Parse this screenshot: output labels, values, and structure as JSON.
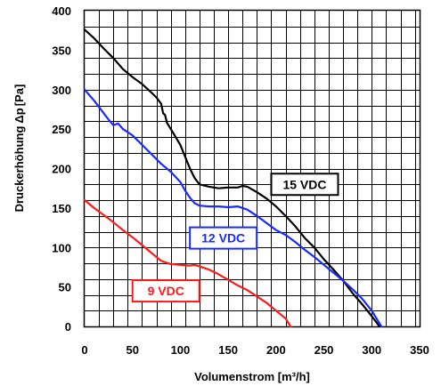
{
  "chart_data": {
    "type": "line",
    "xlabel": "Volumenstrom [m³/h]",
    "ylabel": "Druckerhöhung",
    "ylabel_unit": "[Pa]",
    "xlim": [
      0,
      350
    ],
    "ylim": [
      0,
      400
    ],
    "x_ticks": [
      "0",
      "50",
      "100",
      "150",
      "200",
      "250",
      "300",
      "350"
    ],
    "y_ticks": [
      "0",
      "50",
      "100",
      "150",
      "200",
      "250",
      "300",
      "350",
      "400"
    ],
    "x_grid_step": 15,
    "y_grid_step": 20,
    "grid": true,
    "series": [
      {
        "name": "15 VDC",
        "color": "#000000",
        "label_at": [
          195,
          180
        ],
        "points": [
          [
            0,
            376
          ],
          [
            10,
            365
          ],
          [
            20,
            352
          ],
          [
            30,
            340
          ],
          [
            40,
            326
          ],
          [
            50,
            316
          ],
          [
            60,
            307
          ],
          [
            70,
            296
          ],
          [
            75,
            290
          ],
          [
            80,
            282
          ],
          [
            82,
            270
          ],
          [
            84,
            268
          ],
          [
            86,
            258
          ],
          [
            90,
            250
          ],
          [
            95,
            240
          ],
          [
            100,
            230
          ],
          [
            105,
            215
          ],
          [
            110,
            200
          ],
          [
            115,
            188
          ],
          [
            120,
            180
          ],
          [
            130,
            177
          ],
          [
            140,
            175
          ],
          [
            150,
            176
          ],
          [
            160,
            176
          ],
          [
            165,
            178
          ],
          [
            170,
            177
          ],
          [
            180,
            170
          ],
          [
            190,
            162
          ],
          [
            200,
            152
          ],
          [
            210,
            140
          ],
          [
            220,
            127
          ],
          [
            230,
            112
          ],
          [
            240,
            100
          ],
          [
            250,
            85
          ],
          [
            260,
            72
          ],
          [
            270,
            58
          ],
          [
            280,
            42
          ],
          [
            290,
            28
          ],
          [
            300,
            13
          ],
          [
            308,
            0
          ]
        ]
      },
      {
        "name": "12 VDC",
        "color": "#1a2aff",
        "label_at": [
          110,
          112
        ],
        "points": [
          [
            0,
            300
          ],
          [
            10,
            286
          ],
          [
            20,
            270
          ],
          [
            25,
            262
          ],
          [
            30,
            255
          ],
          [
            35,
            257
          ],
          [
            40,
            250
          ],
          [
            50,
            242
          ],
          [
            60,
            230
          ],
          [
            70,
            218
          ],
          [
            80,
            206
          ],
          [
            90,
            196
          ],
          [
            100,
            183
          ],
          [
            105,
            172
          ],
          [
            110,
            163
          ],
          [
            115,
            156
          ],
          [
            120,
            153
          ],
          [
            130,
            152
          ],
          [
            140,
            152
          ],
          [
            150,
            151
          ],
          [
            160,
            152
          ],
          [
            170,
            148
          ],
          [
            180,
            140
          ],
          [
            190,
            131
          ],
          [
            200,
            122
          ],
          [
            210,
            116
          ],
          [
            220,
            107
          ],
          [
            230,
            97
          ],
          [
            240,
            88
          ],
          [
            250,
            78
          ],
          [
            260,
            68
          ],
          [
            270,
            58
          ],
          [
            280,
            47
          ],
          [
            290,
            35
          ],
          [
            300,
            20
          ],
          [
            310,
            0
          ]
        ]
      },
      {
        "name": "9 VDC",
        "color": "#ff1a1a",
        "label_at": [
          50,
          45
        ],
        "points": [
          [
            0,
            160
          ],
          [
            10,
            150
          ],
          [
            20,
            141
          ],
          [
            30,
            132
          ],
          [
            40,
            122
          ],
          [
            50,
            113
          ],
          [
            60,
            103
          ],
          [
            70,
            93
          ],
          [
            80,
            83
          ],
          [
            90,
            79
          ],
          [
            100,
            78
          ],
          [
            110,
            77
          ],
          [
            115,
            78
          ],
          [
            120,
            76
          ],
          [
            130,
            72
          ],
          [
            140,
            66
          ],
          [
            150,
            59
          ],
          [
            160,
            52
          ],
          [
            170,
            46
          ],
          [
            180,
            38
          ],
          [
            190,
            30
          ],
          [
            200,
            20
          ],
          [
            210,
            10
          ],
          [
            215,
            0
          ]
        ]
      }
    ]
  }
}
